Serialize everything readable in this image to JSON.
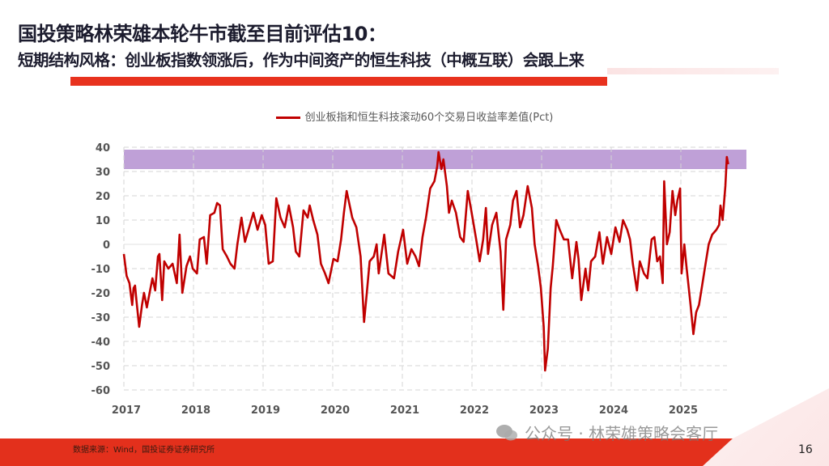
{
  "header": {
    "title": "国投策略林荣雄本轮牛市截至目前评估10：",
    "subtitle": "短期结构风格：创业板指数领涨后，作为中间资产的恒生科技（中概互联）会跟上来"
  },
  "footer": {
    "source": "数据来源：Wind，国投证券证券研究所",
    "watermark": "公众号 · 林荣雄策略会客厅",
    "watermark_icon": "wechat-icon",
    "page_number": "16"
  },
  "colors": {
    "line": "#c00000",
    "band": "#b48fd0",
    "accent": "#e8321e"
  },
  "chart_data": {
    "type": "line",
    "title": "",
    "xlabel": "",
    "ylabel": "",
    "legend_position": "top",
    "grid": true,
    "xlim": [
      2017,
      2025.85
    ],
    "ylim": [
      -60,
      40
    ],
    "x_ticks": [
      "2017",
      "2018",
      "2019",
      "2020",
      "2021",
      "2022",
      "2023",
      "2024",
      "2025"
    ],
    "y_ticks": [
      "40",
      "30",
      "20",
      "10",
      "0",
      "-10",
      "-20",
      "-30",
      "-40",
      "-50",
      "-60"
    ],
    "highlight_band": {
      "y": [
        31,
        39
      ]
    },
    "series": [
      {
        "name": "创业板指和恒生科技滚动60个交易日收益率差值(Pct)",
        "x": [
          2017.0,
          2017.04,
          2017.08,
          2017.12,
          2017.14,
          2017.16,
          2017.18,
          2017.22,
          2017.26,
          2017.29,
          2017.33,
          2017.37,
          2017.41,
          2017.45,
          2017.49,
          2017.51,
          2017.55,
          2017.58,
          2017.64,
          2017.7,
          2017.76,
          2017.8,
          2017.84,
          2017.9,
          2017.95,
          2017.99,
          2018.05,
          2018.09,
          2018.15,
          2018.19,
          2018.24,
          2018.3,
          2018.34,
          2018.38,
          2018.42,
          2018.48,
          2018.53,
          2018.59,
          2018.63,
          2018.69,
          2018.74,
          2018.8,
          2018.86,
          2018.92,
          2018.98,
          2019.03,
          2019.08,
          2019.14,
          2019.19,
          2019.25,
          2019.31,
          2019.37,
          2019.43,
          2019.47,
          2019.52,
          2019.58,
          2019.64,
          2019.67,
          2019.72,
          2019.78,
          2019.83,
          2019.89,
          2019.94,
          2020.01,
          2020.07,
          2020.12,
          2020.16,
          2020.2,
          2020.28,
          2020.34,
          2020.4,
          2020.45,
          2020.49,
          2020.53,
          2020.59,
          2020.63,
          2020.66,
          2020.74,
          2020.8,
          2020.88,
          2020.94,
          2021.01,
          2021.07,
          2021.13,
          2021.19,
          2021.24,
          2021.29,
          2021.34,
          2021.4,
          2021.46,
          2021.5,
          2021.52,
          2021.56,
          2021.59,
          2021.64,
          2021.67,
          2021.71,
          2021.77,
          2021.83,
          2021.88,
          2021.94,
          2021.99,
          2022.06,
          2022.11,
          2022.16,
          2022.2,
          2022.23,
          2022.29,
          2022.35,
          2022.41,
          2022.45,
          2022.49,
          2022.55,
          2022.59,
          2022.64,
          2022.69,
          2022.74,
          2022.8,
          2022.86,
          2022.9,
          2022.95,
          2022.99,
          2023.03,
          2023.05,
          2023.09,
          2023.13,
          2023.16,
          2023.21,
          2023.26,
          2023.32,
          2023.38,
          2023.44,
          2023.5,
          2023.53,
          2023.57,
          2023.63,
          2023.67,
          2023.71,
          2023.77,
          2023.83,
          2023.88,
          2023.94,
          2024.0,
          2024.06,
          2024.12,
          2024.17,
          2024.23,
          2024.27,
          2024.31,
          2024.37,
          2024.41,
          2024.47,
          2024.52,
          2024.58,
          2024.62,
          2024.66,
          2024.7,
          2024.74,
          2024.76,
          2024.8,
          2024.84,
          2024.88,
          2024.92,
          2024.95,
          2024.99,
          2025.01,
          2025.05,
          2025.08,
          2025.14,
          2025.18,
          2025.22,
          2025.26,
          2025.3,
          2025.36,
          2025.4,
          2025.45,
          2025.51,
          2025.55,
          2025.57,
          2025.6,
          2025.64,
          2025.66,
          2025.68
        ],
        "y": [
          -4,
          -13,
          -16,
          -25,
          -18,
          -17,
          -23,
          -34,
          -25,
          -20,
          -26,
          -20,
          -14,
          -19,
          -5,
          -4,
          -23,
          -7,
          -10,
          -8,
          -16,
          4,
          -20,
          -9,
          -5,
          -10,
          -12,
          2,
          3,
          -8,
          12,
          13,
          17,
          16,
          -2,
          -5,
          -8,
          -10,
          0,
          11,
          1,
          7,
          13,
          6,
          12,
          8,
          -8,
          -7,
          19,
          11,
          7,
          16,
          7,
          -3,
          -5,
          14,
          11,
          16,
          10,
          4,
          -8,
          -12,
          -16,
          -6,
          -7,
          2,
          13,
          22,
          11,
          7,
          -5,
          -32,
          -20,
          -7,
          -5,
          0,
          -12,
          4,
          -12,
          -14,
          -3,
          6,
          -8,
          -2,
          -5,
          -9,
          3,
          11,
          23,
          26,
          32,
          38,
          31,
          35,
          24,
          13,
          18,
          13,
          3,
          1,
          22,
          14,
          2,
          -7,
          2,
          15,
          -4,
          8,
          13,
          -3,
          -27,
          2,
          8,
          18,
          22,
          7,
          12,
          24,
          15,
          0,
          -9,
          -18,
          -34,
          -52,
          -43,
          -18,
          -9,
          10,
          6,
          2,
          2,
          -14,
          1,
          -6,
          -23,
          -10,
          -19,
          -7,
          -5,
          5,
          -8,
          3,
          -4,
          7,
          1,
          10,
          6,
          2,
          -8,
          -19,
          -7,
          -12,
          -14,
          2,
          3,
          -7,
          -5,
          -16,
          26,
          0,
          5,
          22,
          12,
          18,
          23,
          -12,
          0,
          -9,
          -25,
          -37,
          -28,
          -25,
          -18,
          -7,
          0,
          4,
          6,
          8,
          16,
          10,
          24,
          36,
          33
        ]
      }
    ]
  }
}
